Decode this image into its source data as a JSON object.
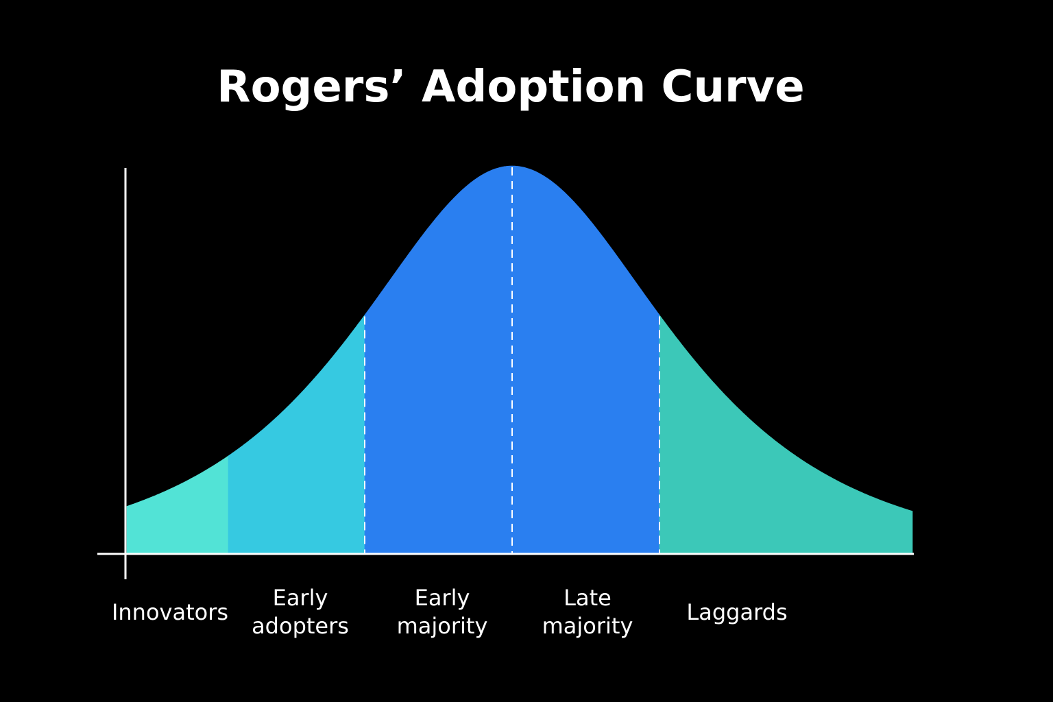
{
  "chart_data": {
    "type": "bell",
    "title": "Rogers’ Adoption Curve",
    "categories": [
      "Innovators",
      "Early adopters",
      "Early majority",
      "Late majority",
      "Laggards"
    ],
    "colors": [
      "#52e3d6",
      "#36c9e1",
      "#2a7ff0",
      "#2a7ff0",
      "#3cc8b8"
    ]
  }
}
